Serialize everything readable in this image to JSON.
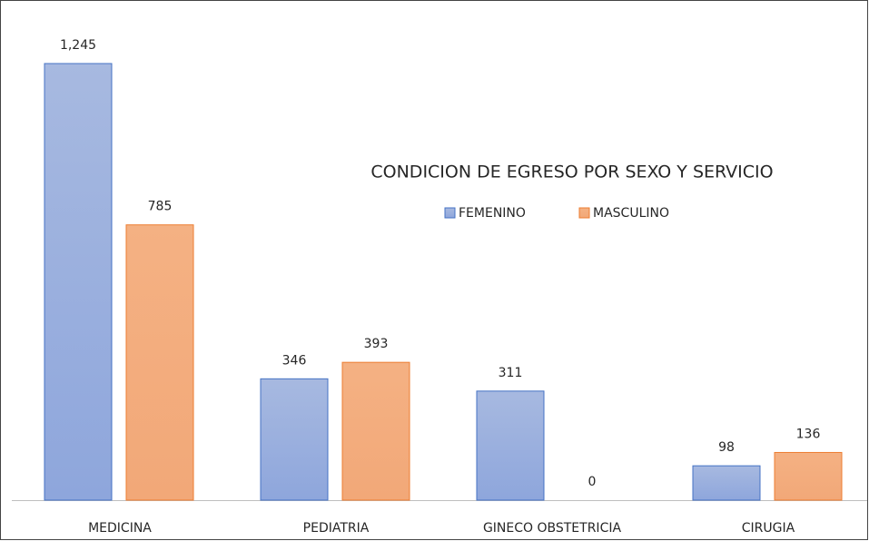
{
  "chart_data": {
    "type": "bar",
    "title": "CONDICION DE EGRESO POR SEXO Y SERVICIO",
    "categories": [
      "MEDICINA",
      "PEDIATRIA",
      "GINECO OBSTETRICIA",
      "CIRUGIA"
    ],
    "series": [
      {
        "name": "FEMENINO",
        "color": "#4472c4",
        "values": [
          1245,
          346,
          311,
          98
        ],
        "value_labels": [
          "1,245",
          "346",
          "311",
          "98"
        ]
      },
      {
        "name": "MASCULINO",
        "color": "#ed7d31",
        "values": [
          785,
          393,
          0,
          136
        ]
      }
    ]
  }
}
